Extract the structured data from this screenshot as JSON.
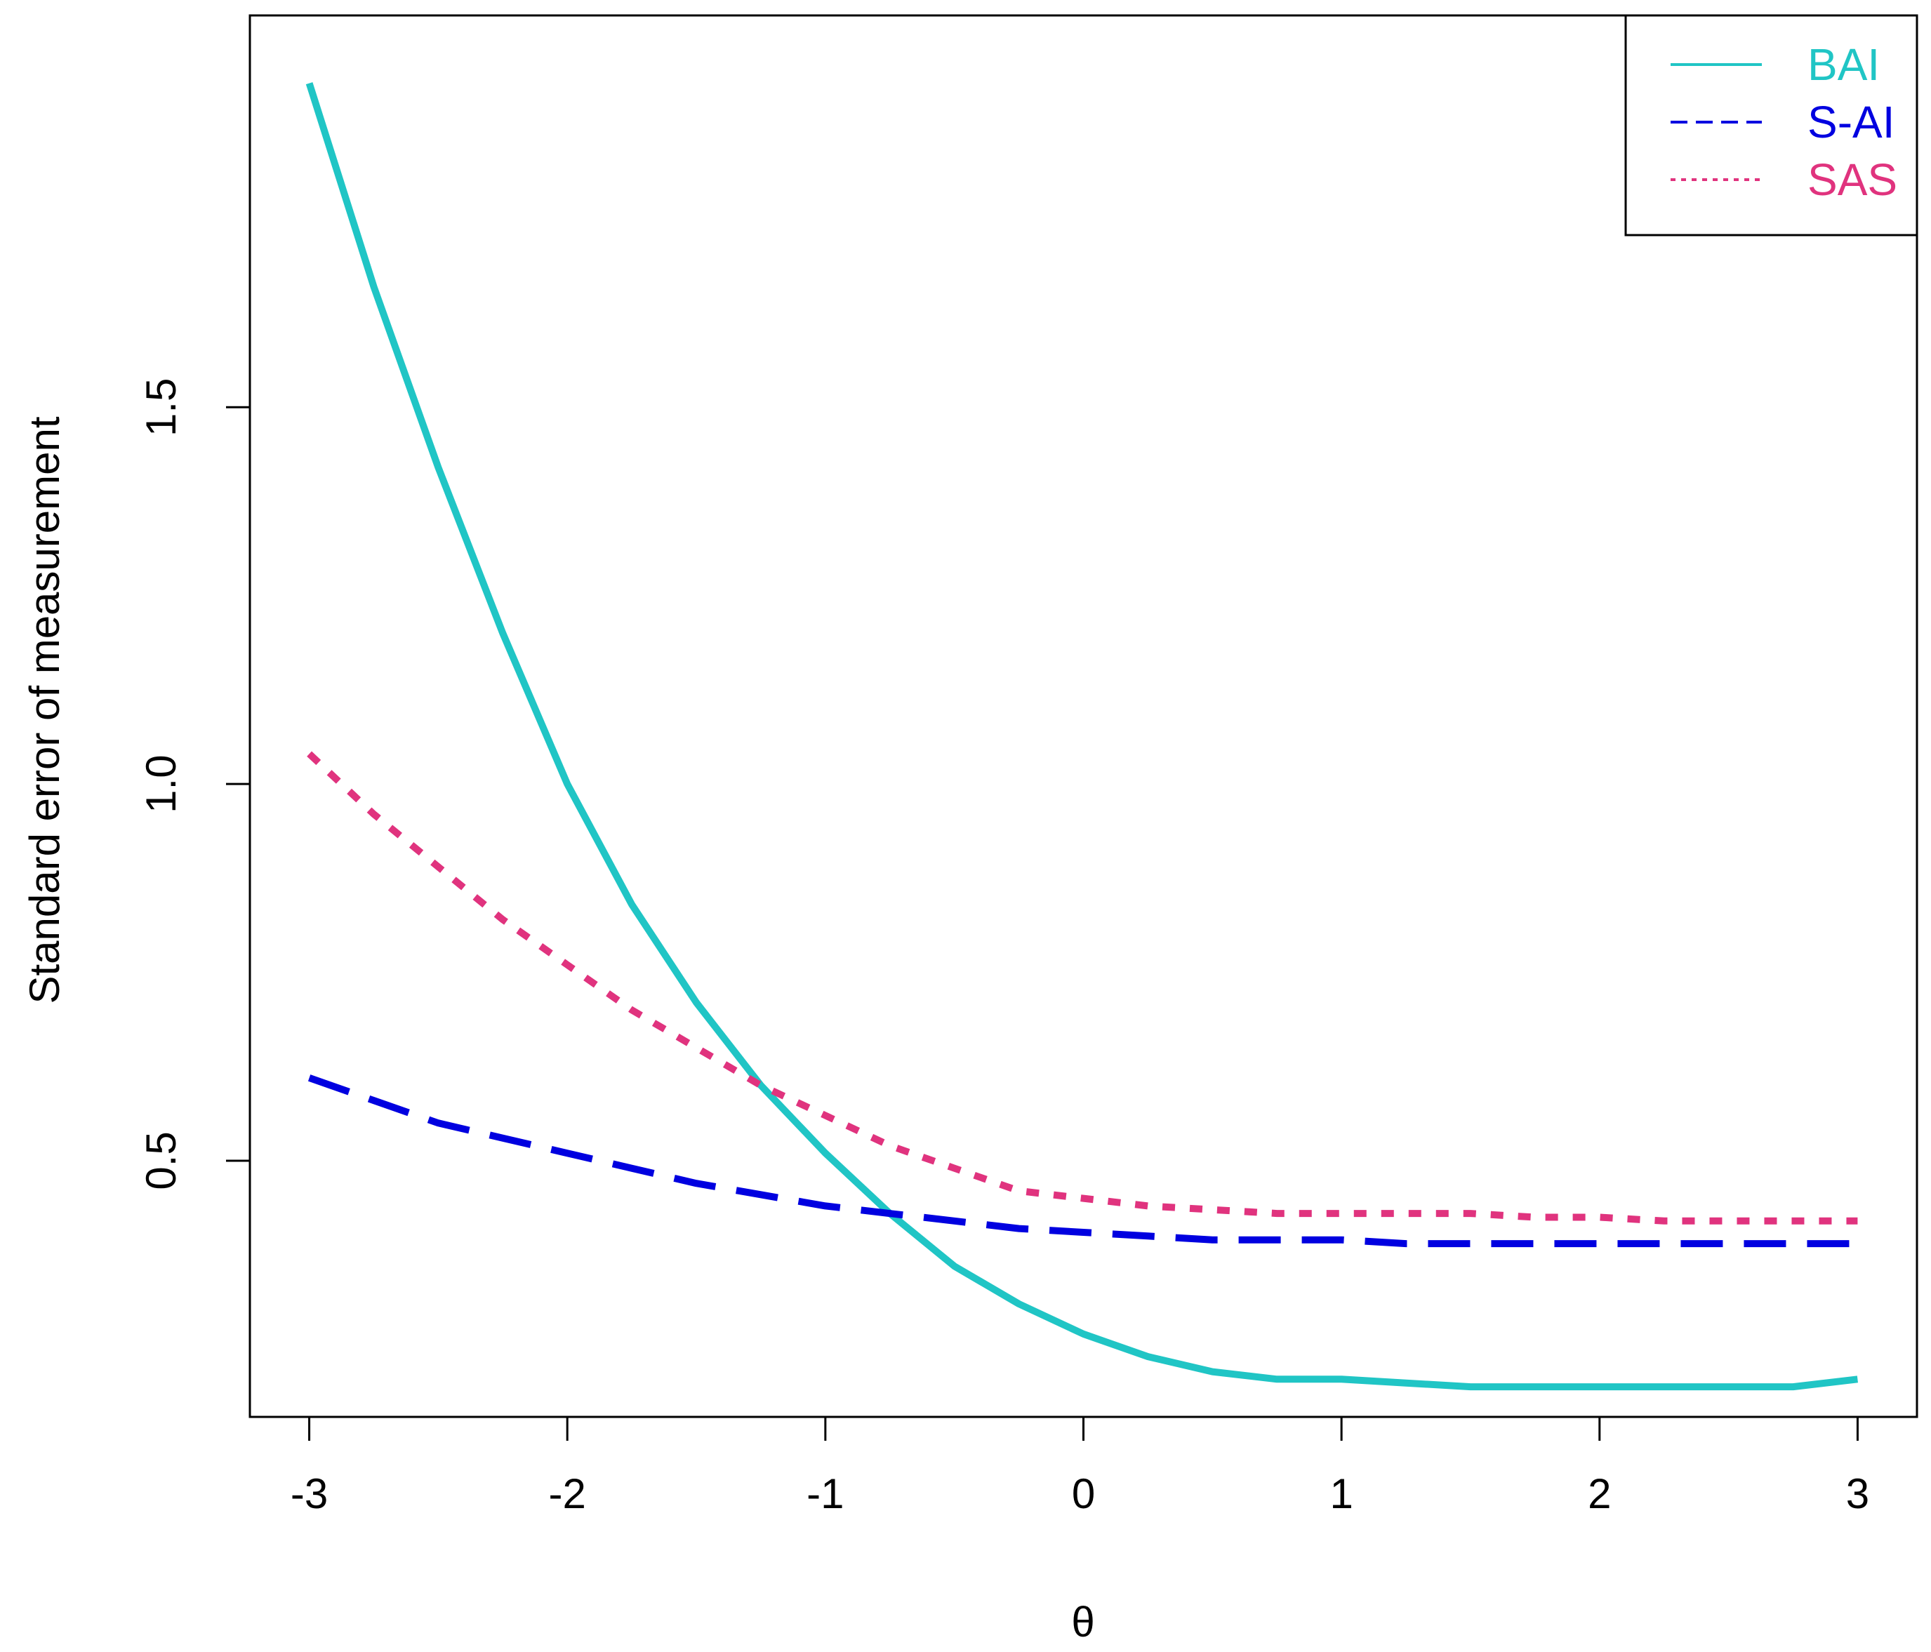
{
  "chart_data": {
    "type": "line",
    "xlabel": "θ",
    "ylabel": "Standard error of measurement",
    "xlim": [
      -3.23,
      3.23
    ],
    "ylim": [
      0.16,
      2.02
    ],
    "x_ticks": [
      -3,
      -2,
      -1,
      0,
      1,
      2,
      3
    ],
    "x_tick_labels": [
      "-3",
      "-2",
      "-1",
      "0",
      "1",
      "2",
      "3"
    ],
    "y_ticks": [
      0.5,
      1.0,
      1.5
    ],
    "y_tick_labels": [
      "0.5",
      "1.0",
      "1.5"
    ],
    "grid": false,
    "legend_position": "top-right",
    "series": [
      {
        "name": "BAI",
        "color": "#20C5C5",
        "style": "solid",
        "x": [
          -3.0,
          -2.75,
          -2.5,
          -2.25,
          -2.0,
          -1.75,
          -1.5,
          -1.25,
          -1.0,
          -0.75,
          -0.5,
          -0.25,
          0.0,
          0.25,
          0.5,
          0.75,
          1.0,
          1.25,
          1.5,
          1.75,
          2.0,
          2.25,
          2.5,
          2.75,
          3.0
        ],
        "values": [
          1.93,
          1.66,
          1.42,
          1.2,
          1.0,
          0.84,
          0.71,
          0.6,
          0.51,
          0.43,
          0.36,
          0.31,
          0.27,
          0.24,
          0.22,
          0.21,
          0.21,
          0.205,
          0.2,
          0.2,
          0.2,
          0.2,
          0.2,
          0.2,
          0.21
        ]
      },
      {
        "name": "S-AI",
        "color": "#0000E0",
        "style": "dashed",
        "x": [
          -3.0,
          -2.75,
          -2.5,
          -2.25,
          -2.0,
          -1.75,
          -1.5,
          -1.25,
          -1.0,
          -0.75,
          -0.5,
          -0.25,
          0.0,
          0.25,
          0.5,
          0.75,
          1.0,
          1.25,
          1.5,
          1.75,
          2.0,
          2.25,
          2.5,
          2.75,
          3.0
        ],
        "values": [
          0.61,
          0.58,
          0.55,
          0.53,
          0.51,
          0.49,
          0.47,
          0.455,
          0.44,
          0.43,
          0.42,
          0.41,
          0.405,
          0.4,
          0.395,
          0.395,
          0.395,
          0.39,
          0.39,
          0.39,
          0.39,
          0.39,
          0.39,
          0.39,
          0.39
        ]
      },
      {
        "name": "SAS",
        "color": "#E0337E",
        "style": "dotted",
        "x": [
          -3.0,
          -2.75,
          -2.5,
          -2.25,
          -2.0,
          -1.75,
          -1.5,
          -1.25,
          -1.0,
          -0.75,
          -0.5,
          -0.25,
          0.0,
          0.25,
          0.5,
          0.75,
          1.0,
          1.25,
          1.5,
          1.75,
          2.0,
          2.25,
          2.5,
          2.75,
          3.0
        ],
        "values": [
          1.04,
          0.96,
          0.89,
          0.82,
          0.76,
          0.7,
          0.65,
          0.6,
          0.56,
          0.52,
          0.49,
          0.46,
          0.45,
          0.44,
          0.435,
          0.43,
          0.43,
          0.43,
          0.43,
          0.425,
          0.425,
          0.42,
          0.42,
          0.42,
          0.42
        ]
      }
    ]
  }
}
